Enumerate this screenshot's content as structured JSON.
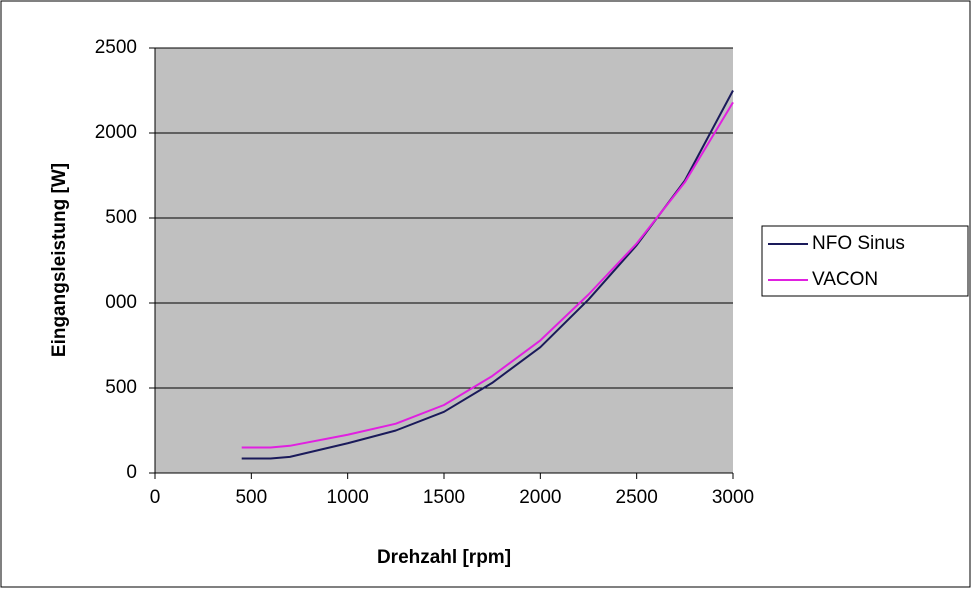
{
  "chart_data": {
    "type": "line",
    "x_label": "Drehzahl [rpm]",
    "y_label": "Eingangsleistung [W]",
    "xlim": [
      0,
      3000
    ],
    "xticks": [
      0,
      500,
      1000,
      1500,
      2000,
      2500,
      3000
    ],
    "ylim": [
      0,
      2500
    ],
    "yticks": [
      0,
      500,
      {
        "value": 1000,
        "label": "000"
      },
      {
        "value": 1500,
        "label": "500"
      },
      2000,
      2500
    ],
    "grid": true,
    "legend": "right",
    "series": [
      {
        "name": "NFO Sinus",
        "color": "#1a1a5a",
        "x": [
          450,
          600,
          700,
          1000,
          1250,
          1500,
          1750,
          2000,
          2250,
          2500,
          2750,
          3000
        ],
        "values": [
          85,
          85,
          95,
          175,
          250,
          360,
          530,
          740,
          1020,
          1340,
          1720,
          2250
        ]
      },
      {
        "name": "VACON",
        "color": "#e020e0",
        "x": [
          450,
          600,
          700,
          1000,
          1250,
          1500,
          1750,
          2000,
          2250,
          2500,
          2750,
          3000
        ],
        "values": [
          150,
          150,
          160,
          225,
          290,
          400,
          570,
          780,
          1050,
          1350,
          1710,
          2180
        ]
      }
    ]
  }
}
